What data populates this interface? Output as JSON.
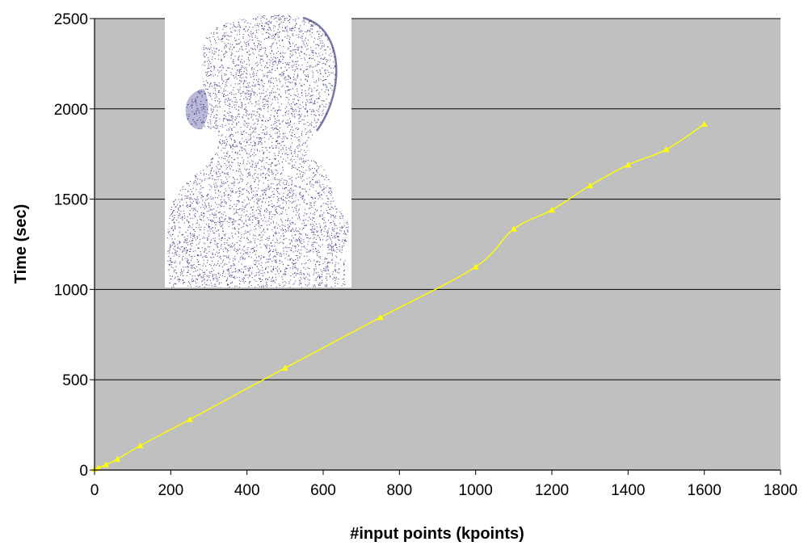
{
  "chart_data": {
    "type": "line",
    "xlabel": "#input points (kpoints)",
    "ylabel": "Time (sec)",
    "xlim": [
      0,
      1800
    ],
    "ylim": [
      0,
      2500
    ],
    "x_ticks": [
      "0",
      "200",
      "400",
      "600",
      "800",
      "1000",
      "1200",
      "1400",
      "1600",
      "1800"
    ],
    "y_ticks": [
      "0",
      "500",
      "1000",
      "1500",
      "2000",
      "2500"
    ],
    "grid": "horizontal",
    "legend": "none",
    "series": [
      {
        "marker": "triangle",
        "color": "#ffff00",
        "x": [
          0,
          10,
          30,
          60,
          120,
          250,
          500,
          750,
          1000,
          1100,
          1200,
          1300,
          1400,
          1500,
          1600
        ],
        "y": [
          5,
          12,
          30,
          60,
          135,
          280,
          565,
          845,
          1125,
          1335,
          1440,
          1575,
          1690,
          1775,
          1915
        ]
      }
    ],
    "plot_background": "#c0c0c0",
    "inset_image": "point-cloud-bust"
  }
}
